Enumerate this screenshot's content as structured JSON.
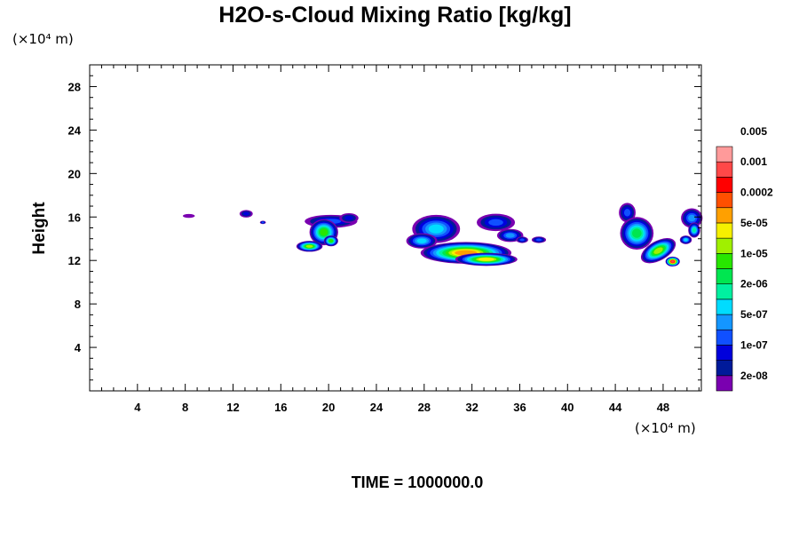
{
  "chart_data": {
    "type": "heatmap",
    "title": "H2O-s-Cloud Mixing Ratio [kg/kg]",
    "ylabel": "Height",
    "x_unit": "(×10⁴ m)",
    "y_unit": "(×10⁴ m)",
    "time_label": "TIME = 1000000.0",
    "xlim": [
      0,
      51.2
    ],
    "ylim": [
      0,
      30
    ],
    "x_ticks": [
      4,
      8,
      12,
      16,
      20,
      24,
      28,
      32,
      36,
      40,
      44,
      48
    ],
    "y_ticks": [
      4,
      8,
      12,
      16,
      20,
      24,
      28
    ],
    "colorbar": {
      "colors": [
        "#7a00b0",
        "#001a9a",
        "#0000dc",
        "#1050ff",
        "#1496ff",
        "#00dcff",
        "#00f0a0",
        "#00e650",
        "#28e600",
        "#a0f000",
        "#f5f000",
        "#ffa000",
        "#ff5000",
        "#ff0000",
        "#ff4848",
        "#ff9a9a"
      ],
      "labels": [
        "2e-08",
        "1e-07",
        "5e-07",
        "2e-06",
        "1e-05",
        "5e-05",
        "0.0002",
        "0.001",
        "0.005"
      ],
      "label_levels": [
        1,
        3,
        5,
        7,
        9,
        11,
        13,
        15,
        17
      ]
    },
    "clouds": [
      {
        "cx": 8.3,
        "cy": 16.1,
        "rx": 0.5,
        "ry": 0.18,
        "peak": 0,
        "ang": 0
      },
      {
        "cx": 13.1,
        "cy": 16.3,
        "rx": 0.55,
        "ry": 0.35,
        "peak": 2,
        "ang": 0
      },
      {
        "cx": 14.5,
        "cy": 15.5,
        "rx": 0.25,
        "ry": 0.15,
        "peak": 3,
        "ang": 0
      },
      {
        "cx": 20.2,
        "cy": 15.6,
        "rx": 2.2,
        "ry": 0.6,
        "peak": 3,
        "ang": 0
      },
      {
        "cx": 21.7,
        "cy": 15.9,
        "rx": 0.8,
        "ry": 0.45,
        "peak": 2,
        "ang": 0
      },
      {
        "cx": 19.6,
        "cy": 14.6,
        "rx": 1.2,
        "ry": 1.2,
        "peak": 8,
        "ang": 0
      },
      {
        "cx": 18.4,
        "cy": 13.3,
        "rx": 1.1,
        "ry": 0.5,
        "peak": 9,
        "ang": 0
      },
      {
        "cx": 20.2,
        "cy": 13.8,
        "rx": 0.6,
        "ry": 0.5,
        "peak": 8,
        "ang": 0
      },
      {
        "cx": 29.0,
        "cy": 14.9,
        "rx": 2.0,
        "ry": 1.3,
        "peak": 5,
        "ang": 0
      },
      {
        "cx": 27.8,
        "cy": 13.8,
        "rx": 1.3,
        "ry": 0.7,
        "peak": 5,
        "ang": 0
      },
      {
        "cx": 31.5,
        "cy": 12.7,
        "rx": 3.8,
        "ry": 1.0,
        "peak": 11,
        "ang": 0
      },
      {
        "cx": 33.2,
        "cy": 12.1,
        "rx": 2.6,
        "ry": 0.6,
        "peak": 10,
        "ang": 0
      },
      {
        "cx": 34.0,
        "cy": 15.5,
        "rx": 1.6,
        "ry": 0.8,
        "peak": 3,
        "ang": 0
      },
      {
        "cx": 35.2,
        "cy": 14.3,
        "rx": 1.1,
        "ry": 0.6,
        "peak": 4,
        "ang": 0
      },
      {
        "cx": 36.2,
        "cy": 13.9,
        "rx": 0.5,
        "ry": 0.3,
        "peak": 3,
        "ang": 0
      },
      {
        "cx": 37.6,
        "cy": 13.9,
        "rx": 0.6,
        "ry": 0.3,
        "peak": 3,
        "ang": 0
      },
      {
        "cx": 45.0,
        "cy": 16.4,
        "rx": 0.7,
        "ry": 0.9,
        "peak": 3,
        "ang": 0
      },
      {
        "cx": 45.8,
        "cy": 14.5,
        "rx": 1.4,
        "ry": 1.5,
        "peak": 7,
        "ang": 0
      },
      {
        "cx": 47.6,
        "cy": 12.9,
        "rx": 1.6,
        "ry": 0.9,
        "peak": 9,
        "ang": -0.5
      },
      {
        "cx": 48.8,
        "cy": 11.9,
        "rx": 0.6,
        "ry": 0.45,
        "peak": 14,
        "ang": 0
      },
      {
        "cx": 50.4,
        "cy": 15.9,
        "rx": 0.9,
        "ry": 0.9,
        "peak": 4,
        "ang": 0
      },
      {
        "cx": 49.9,
        "cy": 13.9,
        "rx": 0.5,
        "ry": 0.4,
        "peak": 5,
        "ang": 0
      },
      {
        "cx": 50.6,
        "cy": 14.8,
        "rx": 0.5,
        "ry": 0.7,
        "peak": 6,
        "ang": 0
      }
    ]
  }
}
